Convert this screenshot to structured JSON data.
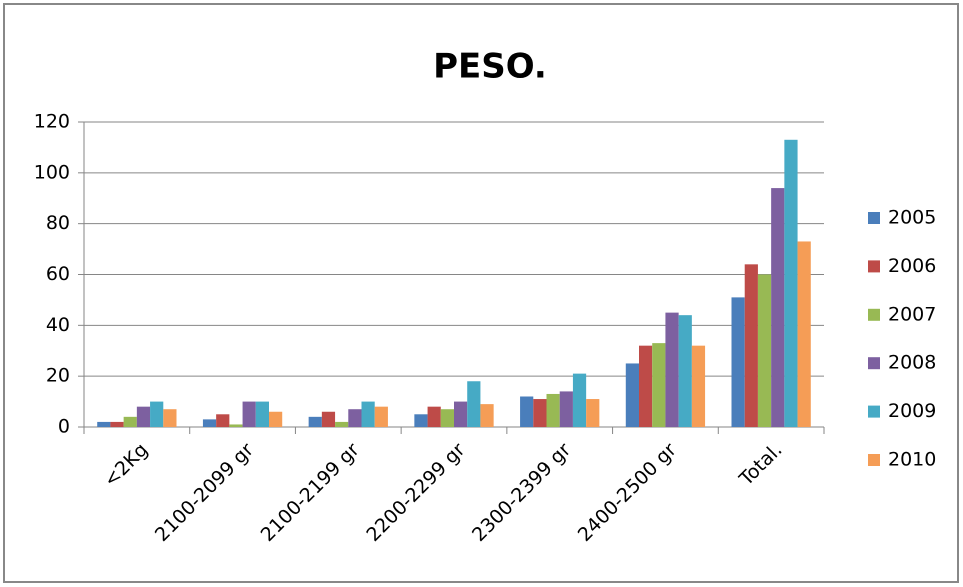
{
  "chart_data": {
    "type": "bar",
    "title": "PESO.",
    "categories": [
      "<2Kg",
      "2100-2099 gr",
      "2100-2199 gr",
      "2200-2299 gr",
      "2300-2399 gr",
      "2400-2500 gr",
      "Total."
    ],
    "series": [
      {
        "name": "2005",
        "color": "#4a7ebb",
        "values": [
          2,
          3,
          4,
          5,
          12,
          25,
          51
        ]
      },
      {
        "name": "2006",
        "color": "#be4b48",
        "values": [
          2,
          5,
          6,
          8,
          11,
          32,
          64
        ]
      },
      {
        "name": "2007",
        "color": "#98b954",
        "values": [
          4,
          1,
          2,
          7,
          13,
          33,
          60
        ]
      },
      {
        "name": "2008",
        "color": "#7d60a0",
        "values": [
          8,
          10,
          7,
          10,
          14,
          45,
          94
        ]
      },
      {
        "name": "2009",
        "color": "#46aac5",
        "values": [
          10,
          10,
          10,
          18,
          21,
          44,
          113
        ]
      },
      {
        "name": "2010",
        "color": "#f59d56",
        "values": [
          7,
          6,
          8,
          9,
          11,
          32,
          73
        ]
      }
    ],
    "ylim": [
      0,
      120
    ],
    "yticks": [
      0,
      20,
      40,
      60,
      80,
      100,
      120
    ],
    "grid": true,
    "legend": "right"
  }
}
